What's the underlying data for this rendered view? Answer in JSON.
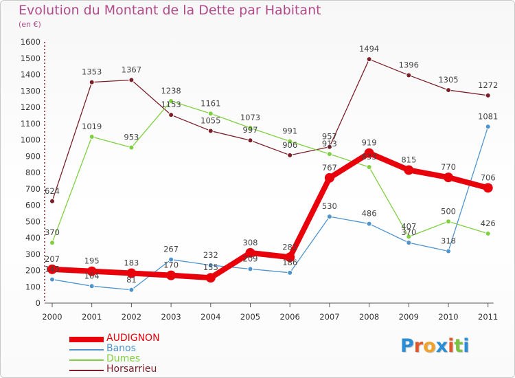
{
  "title": "Evolution du Montant de la Dette par Habitant",
  "unit": "(en €)",
  "logo": {
    "text": "Proxiti",
    "letters": [
      "P",
      "r",
      "o",
      "x",
      "i",
      "t",
      "i"
    ],
    "colors": [
      "#2a8ed6",
      "#e2572a",
      "#f0a22a",
      "#2a8ed6",
      "#e2572a",
      "#7cc242",
      "#2a8ed6"
    ]
  },
  "chart_data": {
    "type": "line",
    "title": "Evolution du Montant de la Dette par Habitant",
    "ylabel": "(en €)",
    "xlabel": "",
    "ylim": [
      0,
      1600
    ],
    "yticks": [
      0,
      100,
      200,
      300,
      400,
      500,
      600,
      700,
      800,
      900,
      1000,
      1100,
      1200,
      1300,
      1400,
      1500,
      1600
    ],
    "categories": [
      "2000",
      "2001",
      "2002",
      "2003",
      "2004",
      "2005",
      "2006",
      "2007",
      "2008",
      "2009",
      "2010",
      "2011"
    ],
    "grid": false,
    "legend_position": "bottom-left",
    "series": [
      {
        "name": "AUDIGNON",
        "color": "#e8000b",
        "values": [
          207,
          195,
          183,
          170,
          155,
          308,
          281,
          767,
          919,
          815,
          770,
          706
        ]
      },
      {
        "name": "Banos",
        "color": "#4f94cd",
        "values": [
          145,
          104,
          81,
          267,
          232,
          209,
          186,
          530,
          486,
          370,
          318,
          1081
        ]
      },
      {
        "name": "Dumes",
        "color": "#7fd040",
        "values": [
          370,
          1019,
          953,
          1238,
          1161,
          1073,
          991,
          913,
          833,
          407,
          500,
          426
        ]
      },
      {
        "name": "Horsarrieu",
        "color": "#7b1e28",
        "values": [
          624,
          1353,
          1367,
          1153,
          1055,
          997,
          906,
          957,
          1494,
          1396,
          1305,
          1272
        ]
      }
    ]
  }
}
